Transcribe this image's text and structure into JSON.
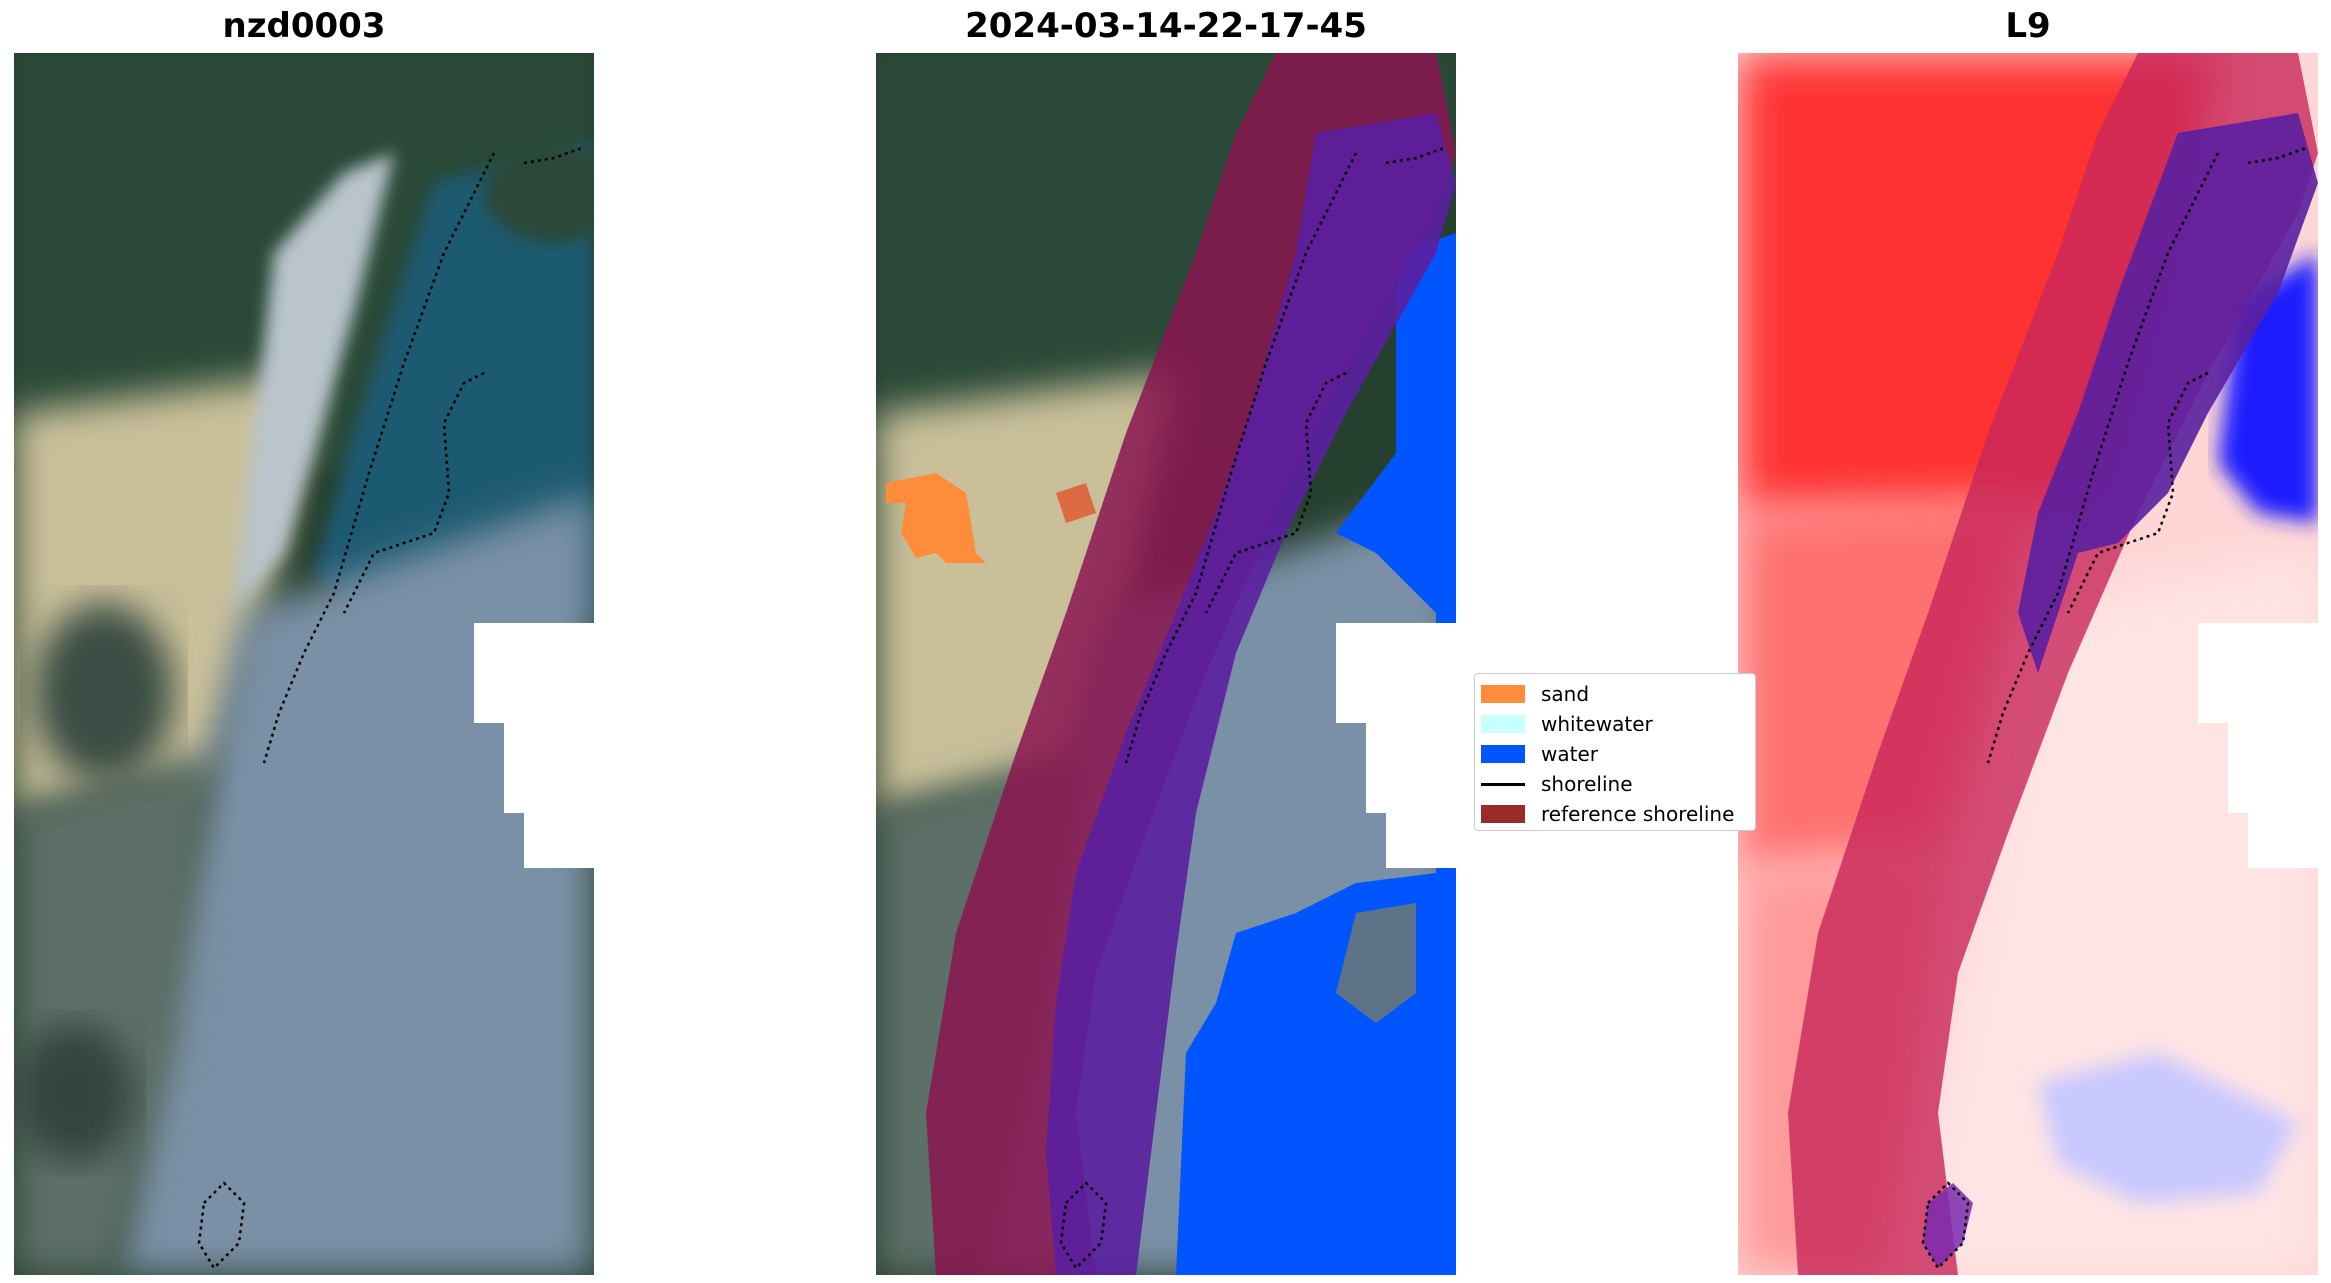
{
  "panels": [
    {
      "title": "nzd0003",
      "kind": "rgb"
    },
    {
      "title": "2024-03-14-22-17-45",
      "kind": "classification"
    },
    {
      "title": "L9",
      "kind": "index"
    }
  ],
  "legend": {
    "items": [
      {
        "label": "sand",
        "color": "#ff8c3a",
        "type": "patch"
      },
      {
        "label": "whitewater",
        "color": "#c8ffff",
        "type": "patch"
      },
      {
        "label": "water",
        "color": "#0055ff",
        "type": "patch"
      },
      {
        "label": "shoreline",
        "color": "#000000",
        "type": "line"
      },
      {
        "label": "reference shoreline",
        "color": "#9a2b2b",
        "type": "patch"
      }
    ]
  },
  "colors": {
    "land": "#2c4a3a",
    "beach": "#cfc6a0",
    "ocean": "#1f5f78",
    "cloud": "#7d93a8",
    "buffer": "#8a1550",
    "index_red": "#ff1a1a",
    "index_blue": "#1a1aff"
  }
}
